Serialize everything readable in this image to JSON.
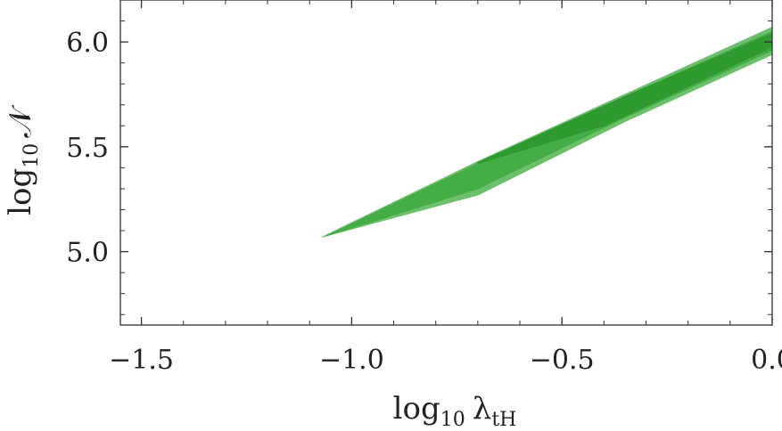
{
  "chart_data": {
    "type": "area",
    "xlabel": {
      "prefix": "log",
      "sub": "10",
      "symbol": "λ",
      "symbol_sub": "tH"
    },
    "ylabel": {
      "prefix": "log",
      "sub": "10",
      "symbol": "𝒩"
    },
    "xlim": [
      -1.55,
      0.0
    ],
    "ylim": [
      4.65,
      6.2
    ],
    "xticks": [
      -1.5,
      -1.0,
      -0.5,
      0.0
    ],
    "xtick_labels": [
      "−1.5",
      "−1.0",
      "−0.5",
      "0.0"
    ],
    "yticks": [
      5.0,
      5.5,
      6.0
    ],
    "ytick_labels": [
      "5.0",
      "5.5",
      "6.0"
    ],
    "grid": false,
    "regions": [
      {
        "color": "#6dbf6d",
        "upper": [
          [
            -1.07,
            5.07
          ],
          [
            -0.7,
            5.43
          ],
          [
            -0.35,
            5.75
          ],
          [
            0.0,
            6.07
          ]
        ],
        "lower": [
          [
            -1.07,
            5.07
          ],
          [
            -0.7,
            5.27
          ],
          [
            -0.35,
            5.62
          ],
          [
            0.0,
            5.94
          ]
        ]
      },
      {
        "color": "#45ad45",
        "upper": [
          [
            -1.06,
            5.075
          ],
          [
            -0.7,
            5.42
          ],
          [
            -0.35,
            5.74
          ],
          [
            0.0,
            6.05
          ]
        ],
        "lower": [
          [
            -1.06,
            5.075
          ],
          [
            -0.7,
            5.3
          ],
          [
            -0.35,
            5.64
          ],
          [
            0.0,
            5.96
          ]
        ]
      },
      {
        "color": "#2f9a2f",
        "upper": [
          [
            -0.7,
            5.425
          ],
          [
            -0.35,
            5.74
          ],
          [
            0.0,
            6.04
          ]
        ],
        "lower": [
          [
            -0.7,
            5.42
          ],
          [
            -0.4,
            5.6
          ],
          [
            0.0,
            5.975
          ]
        ]
      }
    ]
  }
}
